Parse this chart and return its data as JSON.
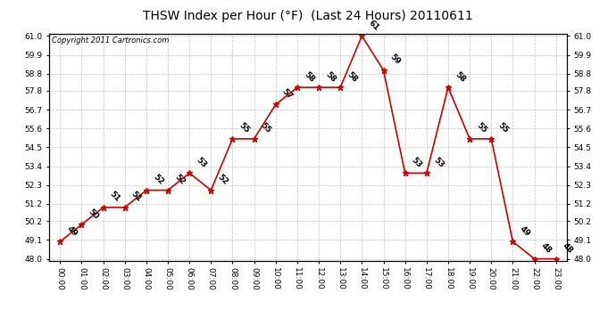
{
  "title": "THSW Index per Hour (°F)  (Last 24 Hours) 20110611",
  "copyright": "Copyright 2011 Cartronics.com",
  "hours": [
    "00:00",
    "01:00",
    "02:00",
    "03:00",
    "04:00",
    "05:00",
    "06:00",
    "07:00",
    "08:00",
    "09:00",
    "10:00",
    "11:00",
    "12:00",
    "13:00",
    "14:00",
    "15:00",
    "16:00",
    "17:00",
    "18:00",
    "19:00",
    "20:00",
    "21:00",
    "22:00",
    "23:00"
  ],
  "values": [
    49,
    50,
    51,
    51,
    52,
    52,
    53,
    52,
    55,
    55,
    57,
    58,
    58,
    58,
    61,
    59,
    53,
    53,
    58,
    55,
    55,
    49,
    48,
    48
  ],
  "line_color": "#cc0000",
  "marker_color": "#cc0000",
  "bg_color": "#ffffff",
  "plot_bg_color": "#ffffff",
  "grid_color": "#bbbbbb",
  "ylim_min": 47.9,
  "ylim_max": 61.15,
  "yticks": [
    48.0,
    49.1,
    50.2,
    51.2,
    52.3,
    53.4,
    54.5,
    55.6,
    56.7,
    57.8,
    58.8,
    59.9,
    61.0
  ],
  "title_fontsize": 10,
  "label_fontsize": 6.5,
  "tick_fontsize": 6.5,
  "copyright_fontsize": 6
}
